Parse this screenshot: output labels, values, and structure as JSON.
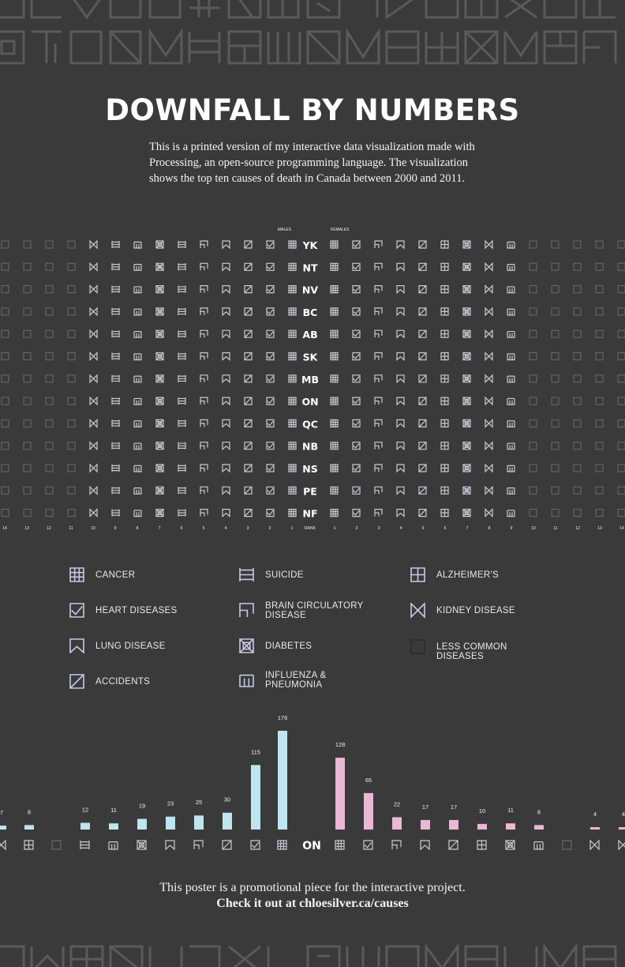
{
  "title": "DOWNFALL BY NUMBERS",
  "intro": "This is a printed version of my interactive data visualization made with Processing, an open-source programming language. The visualization shows the top ten causes of death in Canada between 2000 and 2011.",
  "grid": {
    "males_label": "MALES",
    "females_label": "FEMALES",
    "rank_label": "RANK",
    "male_ranks": [
      "14",
      "13",
      "12",
      "11",
      "10",
      "9",
      "8",
      "7",
      "6",
      "5",
      "4",
      "3",
      "2",
      "1"
    ],
    "female_ranks": [
      "1",
      "2",
      "3",
      "4",
      "5",
      "6",
      "7",
      "8",
      "9",
      "10",
      "11",
      "12",
      "13",
      "14"
    ],
    "provinces": [
      "YK",
      "NT",
      "NV",
      "BC",
      "AB",
      "SK",
      "MB",
      "ON",
      "QC",
      "NB",
      "NS",
      "PE",
      "NF"
    ],
    "male_colors": {
      "cancer": "#b5dde8",
      "suicide": "#b5dde8"
    },
    "female_color": "#e7b7d3"
  },
  "legend": [
    {
      "icon": "cancer",
      "label": "CANCER"
    },
    {
      "icon": "heart",
      "label": "HEART DISEASES"
    },
    {
      "icon": "lung",
      "label": "LUNG DISEASE"
    },
    {
      "icon": "accidents",
      "label": "ACCIDENTS"
    },
    {
      "icon": "suicide",
      "label": "SUICIDE"
    },
    {
      "icon": "brain",
      "label": "BRAIN CIRCULATORY DISEASE"
    },
    {
      "icon": "diabetes",
      "label": "DIABETES"
    },
    {
      "icon": "influenza",
      "label": "INFLUENZA & PNEUMONIA"
    },
    {
      "icon": "alzheimers",
      "label": "ALZHEIMER'S"
    },
    {
      "icon": "kidney",
      "label": "KIDNEY DISEASE"
    },
    {
      "icon": "less",
      "label": "LESS COMMON DISEASES"
    }
  ],
  "chart_data": {
    "type": "bar",
    "title": "",
    "province": "ON",
    "male_values": [
      "7",
      "8",
      "",
      "12",
      "11",
      "19",
      "23",
      "25",
      "30",
      "115",
      "176"
    ],
    "female_values": [
      "128",
      "65",
      "22",
      "17",
      "17",
      "10",
      "11",
      "8",
      "",
      "4",
      "4"
    ],
    "colors": {
      "males": "#bfe5ef",
      "females": "#e9b8d5"
    }
  },
  "footer": {
    "line1": "This poster is a promotional piece for the interactive project.",
    "line2": "Check it out at chloesilver.ca/causes"
  }
}
